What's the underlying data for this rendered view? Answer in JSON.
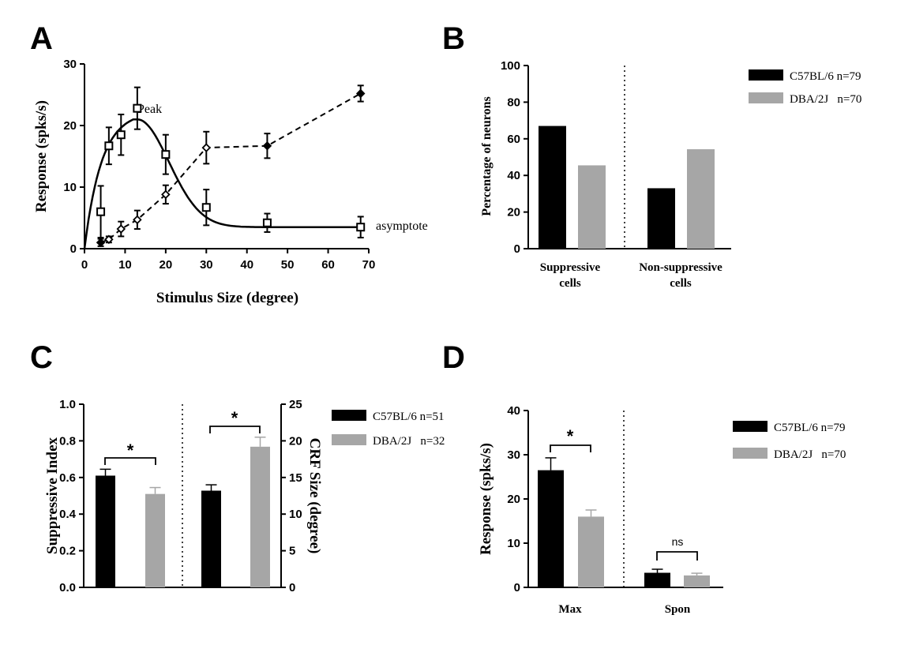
{
  "colors": {
    "c57": "#000000",
    "dba": "#a6a6a6",
    "axis": "#000000"
  },
  "chart_data": [
    {
      "panel": "A",
      "type": "line",
      "xlabel": "Stimulus Size (degree)",
      "ylabel": "Response (spks/s)",
      "xlim": [
        0,
        70
      ],
      "ylim": [
        0,
        30
      ],
      "xticks": [
        "0",
        "10",
        "20",
        "30",
        "40",
        "50",
        "60",
        "70"
      ],
      "yticks": [
        "0",
        "10",
        "20",
        "30"
      ],
      "annotations": {
        "peak": "Peak",
        "asymptote": "asymptote"
      },
      "series": [
        {
          "marker": "open-square",
          "x": [
            4,
            6,
            9,
            13,
            20,
            30,
            45,
            68
          ],
          "y": [
            6,
            16.7,
            18.5,
            22.8,
            15.3,
            6.7,
            4.2,
            3.5
          ],
          "err": [
            4.2,
            3,
            3.3,
            3.4,
            3.2,
            2.9,
            1.5,
            1.7
          ]
        },
        {
          "marker": "diamond",
          "x": [
            4,
            6,
            9,
            13,
            20,
            30,
            45,
            68
          ],
          "y": [
            1,
            1.5,
            3.2,
            4.7,
            8.8,
            16.4,
            16.7,
            25.2
          ],
          "err": [
            0.6,
            0.5,
            1.2,
            1.5,
            1.5,
            2.6,
            2,
            1.3
          ]
        }
      ],
      "fit_curve": {
        "amplitude": 21,
        "peak_x": 13,
        "asymptote": 3.5
      }
    },
    {
      "panel": "B",
      "type": "bar",
      "ylabel": "Percentage of neurons",
      "ylim": [
        0,
        100
      ],
      "yticks": [
        "0",
        "20",
        "40",
        "60",
        "80",
        "100"
      ],
      "categories": [
        {
          "line1": "Suppressive",
          "line2": "cells"
        },
        {
          "line1": "Non-suppressive",
          "line2": "cells"
        }
      ],
      "series": [
        {
          "name": "C57BL/6 n=79",
          "values": [
            67,
            33
          ]
        },
        {
          "name": "DBA/2J   n=70",
          "values": [
            45.5,
            54.3
          ]
        }
      ]
    },
    {
      "panel": "C",
      "type": "bar",
      "ylabel_left": "Suppressive Index",
      "ylabel_right": "CRF Size (degree)",
      "ylim_left": [
        0,
        1.0
      ],
      "ylim_right": [
        0,
        25
      ],
      "yticks_left": [
        "0.0",
        "0.2",
        "0.4",
        "0.6",
        "0.8",
        "1.0"
      ],
      "yticks_right": [
        "0",
        "5",
        "10",
        "15",
        "20",
        "25"
      ],
      "series": [
        {
          "name": "C57BL/6 n=51",
          "values_left": [
            0.61
          ],
          "err_left": [
            0.035
          ],
          "values_right": [
            13.2
          ],
          "err_right": [
            0.8
          ]
        },
        {
          "name": "DBA/2J   n=32",
          "values_left": [
            0.51
          ],
          "err_left": [
            0.035
          ],
          "values_right": [
            19.2
          ],
          "err_right": [
            1.3
          ]
        }
      ],
      "significance": [
        "*",
        "*"
      ]
    },
    {
      "panel": "D",
      "type": "bar",
      "ylabel": "Response (spks/s)",
      "ylim": [
        0,
        40
      ],
      "yticks": [
        "0",
        "10",
        "20",
        "30",
        "40"
      ],
      "categories": [
        "Max",
        "Spon"
      ],
      "series": [
        {
          "name": "C57BL/6 n=79",
          "values": [
            26.5,
            3.3
          ],
          "err": [
            2.8,
            0.8
          ]
        },
        {
          "name": "DBA/2J   n=70",
          "values": [
            16,
            2.7
          ],
          "err": [
            1.5,
            0.5
          ]
        }
      ],
      "significance": [
        "*",
        "ns"
      ]
    }
  ],
  "panels": {
    "a": "A",
    "b": "B",
    "c": "C",
    "d": "D"
  }
}
